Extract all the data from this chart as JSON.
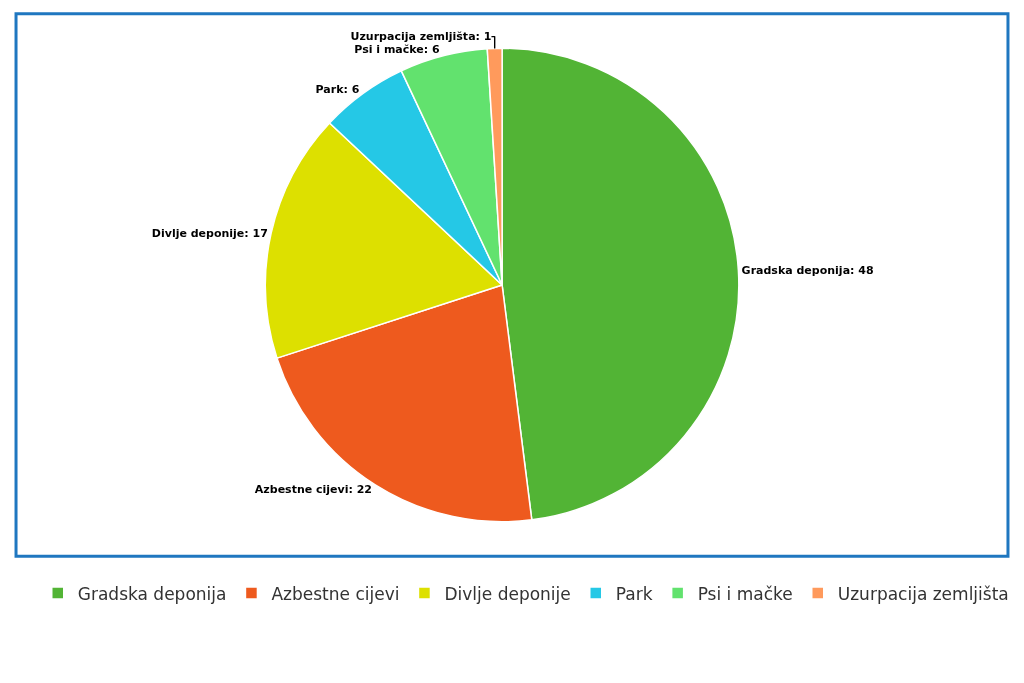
{
  "chart_data": {
    "type": "pie",
    "categories": [
      "Gradska deponija",
      "Azbestne cijevi",
      "Divlje deponije",
      "Park",
      "Psi i mačke",
      "Uzurpacija zemljišta"
    ],
    "values": [
      48,
      22,
      17,
      6,
      6,
      1
    ],
    "colors": [
      "#52b435",
      "#ee5a1e",
      "#dde000",
      "#25c8e6",
      "#62e26e",
      "#ff9a5c"
    ],
    "value_labels": [
      "Gradska deponija: 48",
      "Azbestne cijevi: 22",
      "Divlje deponije: 17",
      "Park: 6",
      "Psi i mačke: 6",
      "Uzurpacija zemljišta: 1"
    ],
    "legend": "bottom"
  }
}
